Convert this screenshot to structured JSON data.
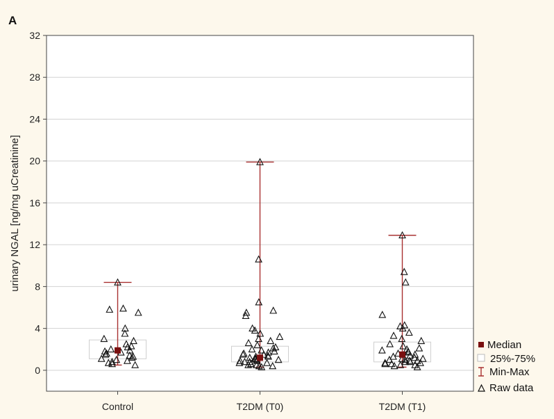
{
  "panel_label": "A",
  "colors": {
    "background": "#fdf8ec",
    "plot_bg": "#ffffff",
    "grid": "#d3d3d3",
    "median": "#7a1010",
    "whisker": "#a83030",
    "box": "#cfcfcf",
    "raw": "#111111"
  },
  "legend": {
    "median": "Median",
    "iqr": "25%-75%",
    "minmax": "Min-Max",
    "raw": "Raw data"
  },
  "chart_data": {
    "type": "box",
    "title": "",
    "xlabel": "",
    "ylabel": "urinary NGAL [ng/mg uCreatinine]",
    "ylim": [
      -2,
      32
    ],
    "yticks": [
      0,
      4,
      8,
      12,
      16,
      20,
      24,
      28,
      32
    ],
    "grid": true,
    "legend_position": "right-bottom",
    "categories": [
      "Control",
      "T2DM (T0)",
      "T2DM (T1)"
    ],
    "groups": [
      {
        "category": "Control",
        "median": 1.9,
        "q1": 1.1,
        "q3": 2.9,
        "min": 0.5,
        "max": 8.4,
        "raw": [
          8.4,
          5.8,
          5.9,
          5.5,
          4.0,
          3.5,
          3.0,
          2.8,
          2.5,
          2.3,
          2.2,
          2.0,
          1.9,
          1.8,
          1.7,
          1.6,
          1.5,
          1.4,
          1.3,
          1.2,
          1.1,
          1.0,
          0.9,
          0.8,
          0.7,
          0.6,
          0.5
        ]
      },
      {
        "category": "T2DM (T0)",
        "median": 1.2,
        "q1": 0.8,
        "q3": 2.3,
        "min": 0.3,
        "max": 19.9,
        "raw": [
          19.9,
          10.6,
          6.5,
          5.7,
          5.5,
          5.2,
          4.0,
          3.8,
          3.5,
          3.2,
          3.0,
          2.8,
          2.6,
          2.4,
          2.2,
          2.1,
          2.0,
          1.9,
          1.8,
          1.7,
          1.6,
          1.5,
          1.5,
          1.4,
          1.3,
          1.3,
          1.2,
          1.1,
          1.1,
          1.0,
          1.0,
          0.9,
          0.9,
          0.8,
          0.8,
          0.7,
          0.7,
          0.6,
          0.6,
          0.5,
          0.5,
          0.4,
          0.4,
          0.3
        ]
      },
      {
        "category": "T2DM (T1)",
        "median": 1.5,
        "q1": 0.8,
        "q3": 2.7,
        "min": 0.3,
        "max": 12.9,
        "raw": [
          12.9,
          9.4,
          8.4,
          5.3,
          4.3,
          4.2,
          4.0,
          3.6,
          3.3,
          3.0,
          2.8,
          2.5,
          2.3,
          2.1,
          2.0,
          1.9,
          1.8,
          1.7,
          1.6,
          1.5,
          1.4,
          1.3,
          1.2,
          1.1,
          1.1,
          1.0,
          1.0,
          0.9,
          0.9,
          0.8,
          0.8,
          0.7,
          0.7,
          0.6,
          0.6,
          0.5,
          0.5,
          0.4,
          0.3
        ]
      }
    ]
  }
}
